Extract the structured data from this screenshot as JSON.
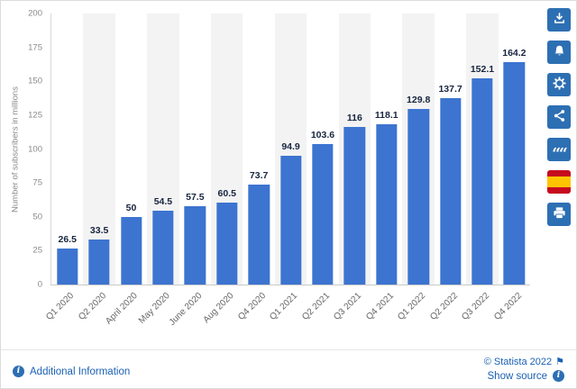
{
  "colors": {
    "accent": "#2d6fb3",
    "bar": "#3c74d0",
    "band": "#f3f3f3",
    "link": "#1a60b3",
    "value": "#17253f",
    "axis": "#8a8a8a"
  },
  "chart_data": {
    "type": "bar",
    "title": "",
    "categories": [
      "Q1 2020",
      "Q2 2020",
      "April 2020",
      "May 2020",
      "June 2020",
      "Aug 2020",
      "Q4 2020",
      "Q1 2021",
      "Q2 2021",
      "Q3 2021",
      "Q4 2021",
      "Q1 2022",
      "Q2 2022",
      "Q3 2022",
      "Q4 2022"
    ],
    "values": [
      26.5,
      33.5,
      50,
      54.5,
      57.5,
      60.5,
      73.7,
      94.9,
      103.6,
      116,
      118.1,
      129.8,
      137.7,
      152.1,
      164.2
    ],
    "xlabel": "",
    "ylabel": "Number of subscribers in millions",
    "ylim": [
      0,
      200
    ],
    "yticks": [
      0,
      25,
      50,
      75,
      100,
      125,
      150,
      175,
      200
    ],
    "grid": "off",
    "legend": "none"
  },
  "sidebar": {
    "buttons": [
      {
        "name": "download"
      },
      {
        "name": "alerts"
      },
      {
        "name": "settings"
      },
      {
        "name": "share"
      },
      {
        "name": "citation"
      },
      {
        "name": "language-spanish"
      },
      {
        "name": "print"
      }
    ]
  },
  "icons": {
    "info": "i",
    "flag": "⚑",
    "quote": "““"
  },
  "footer": {
    "additional_information": "Additional Information",
    "copyright": "© Statista 2022",
    "show_source": "Show source"
  }
}
